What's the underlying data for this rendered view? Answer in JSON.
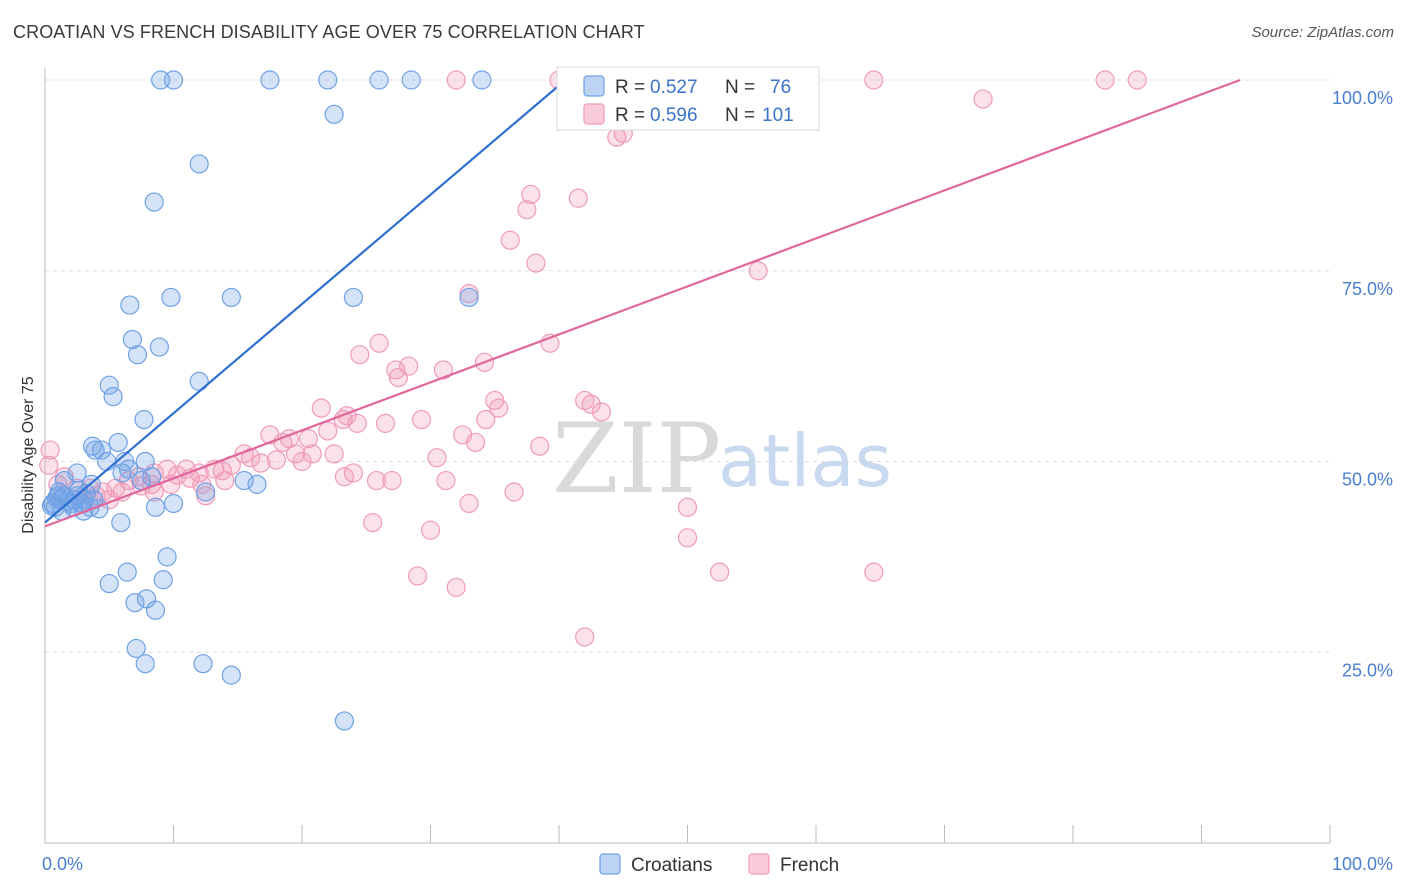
{
  "title": "CROATIAN VS FRENCH DISABILITY AGE OVER 75 CORRELATION CHART",
  "source": "Source: ZipAtlas.com",
  "watermark": {
    "zip": "ZIP",
    "atlas": "atlas"
  },
  "colors": {
    "croatians": "#6fa1e6",
    "croatians_line": "#2f6fd1",
    "french": "#f09bb8",
    "french_line": "#e0679a",
    "grid": "#dedede",
    "tick": "#4a7fd0"
  },
  "legend": {
    "r_label": "R =",
    "n_label": "N =",
    "croatians": {
      "r": "0.527",
      "n": "76"
    },
    "french": {
      "r": "0.596",
      "n": "101"
    }
  },
  "chart_data": {
    "type": "scatter",
    "title": "CROATIAN VS FRENCH DISABILITY AGE OVER 75 CORRELATION CHART",
    "xlabel": "",
    "ylabel": "Disability Age Over 75",
    "xlim": [
      0,
      100
    ],
    "ylim": [
      0,
      100
    ],
    "x_tick_labels": [
      {
        "value": 0,
        "label": "0.0%"
      },
      {
        "value": 100,
        "label": "100.0%"
      }
    ],
    "y_tick_labels": [
      {
        "value": 25,
        "label": "25.0%"
      },
      {
        "value": 50,
        "label": "50.0%"
      },
      {
        "value": 75,
        "label": "75.0%"
      },
      {
        "value": 100,
        "label": "100.0%"
      }
    ],
    "grid": true,
    "series": [
      {
        "name": "Croatians",
        "r": 0.527,
        "n": 76,
        "trend": {
          "x": [
            0,
            40.5
          ],
          "y": [
            42,
            100
          ]
        },
        "points": [
          [
            9,
            100
          ],
          [
            10,
            100
          ],
          [
            17.5,
            100
          ],
          [
            22,
            100
          ],
          [
            26,
            100
          ],
          [
            28.5,
            100
          ],
          [
            34,
            100
          ],
          [
            22.5,
            95.5
          ],
          [
            12,
            89
          ],
          [
            8.5,
            84
          ],
          [
            9.8,
            71.5
          ],
          [
            14.5,
            71.5
          ],
          [
            24,
            71.5
          ],
          [
            33,
            71.5
          ],
          [
            6.6,
            70.5
          ],
          [
            6.8,
            66
          ],
          [
            7.2,
            64
          ],
          [
            8.9,
            65
          ],
          [
            5,
            60
          ],
          [
            12,
            60.5
          ],
          [
            5.3,
            58.5
          ],
          [
            7.7,
            55.5
          ],
          [
            3.7,
            52
          ],
          [
            5.7,
            52.5
          ],
          [
            3.9,
            51.5
          ],
          [
            4.4,
            51.5
          ],
          [
            7.8,
            50
          ],
          [
            4.8,
            50
          ],
          [
            6.2,
            50
          ],
          [
            6.5,
            49
          ],
          [
            2.5,
            48.5
          ],
          [
            8.3,
            48
          ],
          [
            1.5,
            47.5
          ],
          [
            3.6,
            47
          ],
          [
            7.5,
            47.5
          ],
          [
            15.5,
            47.5
          ],
          [
            16.5,
            47
          ],
          [
            12.5,
            46
          ],
          [
            1,
            45.5
          ],
          [
            1.5,
            45.5
          ],
          [
            2.5,
            45.5
          ],
          [
            3,
            45
          ],
          [
            3.8,
            45
          ],
          [
            1.2,
            45
          ],
          [
            0.6,
            44.5
          ],
          [
            2,
            44.5
          ],
          [
            2.8,
            44.5
          ],
          [
            0.8,
            44
          ],
          [
            1.3,
            43.5
          ],
          [
            2.2,
            44
          ],
          [
            3.5,
            44
          ],
          [
            8.6,
            44
          ],
          [
            10,
            44.5
          ],
          [
            3,
            43.5
          ],
          [
            5.9,
            42
          ],
          [
            6.4,
            35.5
          ],
          [
            5,
            34
          ],
          [
            9.2,
            34.5
          ],
          [
            9.5,
            37.5
          ],
          [
            7,
            31.5
          ],
          [
            7.9,
            32
          ],
          [
            8.6,
            30.5
          ],
          [
            7.1,
            25.5
          ],
          [
            7.8,
            23.5
          ],
          [
            12.3,
            23.5
          ],
          [
            14.5,
            22
          ],
          [
            23.3,
            16
          ],
          [
            0.5,
            44.2
          ],
          [
            1.8,
            44.8
          ],
          [
            4.2,
            43.8
          ],
          [
            3.2,
            45.8
          ],
          [
            2.6,
            46.2
          ],
          [
            6.0,
            48.5
          ],
          [
            1.1,
            46.0
          ],
          [
            0.9,
            45.2
          ],
          [
            2.3,
            45.0
          ]
        ]
      },
      {
        "name": "French",
        "r": 0.596,
        "n": 101,
        "trend": {
          "x": [
            0,
            93
          ],
          "y": [
            41.5,
            100
          ]
        },
        "points": [
          [
            32,
            100
          ],
          [
            40,
            100
          ],
          [
            41,
            100
          ],
          [
            46,
            100
          ],
          [
            48,
            100
          ],
          [
            64.5,
            100
          ],
          [
            85,
            100
          ],
          [
            82.5,
            100
          ],
          [
            73,
            97.5
          ],
          [
            45,
            93
          ],
          [
            44.5,
            92.5
          ],
          [
            41.5,
            84.5
          ],
          [
            37.5,
            83
          ],
          [
            37.8,
            85
          ],
          [
            36.2,
            79
          ],
          [
            38.2,
            76
          ],
          [
            55.5,
            75
          ],
          [
            33,
            72
          ],
          [
            39.3,
            65.5
          ],
          [
            26,
            65.5
          ],
          [
            24.5,
            64
          ],
          [
            27.3,
            62
          ],
          [
            28.3,
            62.5
          ],
          [
            31,
            62
          ],
          [
            34.2,
            63
          ],
          [
            27.5,
            61
          ],
          [
            35,
            58
          ],
          [
            42.5,
            57.5
          ],
          [
            35.3,
            57
          ],
          [
            43.3,
            56.5
          ],
          [
            21.5,
            57
          ],
          [
            23.5,
            56
          ],
          [
            23.2,
            55.5
          ],
          [
            24.3,
            55
          ],
          [
            29.3,
            55.5
          ],
          [
            34.3,
            55.5
          ],
          [
            17.5,
            53.5
          ],
          [
            19,
            53
          ],
          [
            20.5,
            53
          ],
          [
            18.5,
            52.5
          ],
          [
            33.5,
            52.5
          ],
          [
            38.5,
            52
          ],
          [
            15.5,
            51
          ],
          [
            16,
            50.5
          ],
          [
            19.5,
            51
          ],
          [
            20.8,
            51
          ],
          [
            22.5,
            51
          ],
          [
            14.5,
            49.5
          ],
          [
            13.2,
            49
          ],
          [
            12,
            48.5
          ],
          [
            11,
            49
          ],
          [
            9.5,
            49
          ],
          [
            8.5,
            48.5
          ],
          [
            7.3,
            48
          ],
          [
            6.5,
            47.5
          ],
          [
            8.3,
            47
          ],
          [
            9.8,
            47
          ],
          [
            12.2,
            47
          ],
          [
            24,
            48.5
          ],
          [
            23.3,
            48
          ],
          [
            25.8,
            47.5
          ],
          [
            27,
            47.5
          ],
          [
            31.2,
            47.5
          ],
          [
            14,
            47.5
          ],
          [
            12.5,
            45.5
          ],
          [
            8.5,
            46
          ],
          [
            6,
            46
          ],
          [
            5.5,
            46.5
          ],
          [
            4.5,
            46
          ],
          [
            3.5,
            46.5
          ],
          [
            2.5,
            46.5
          ],
          [
            4,
            45.5
          ],
          [
            1,
            47
          ],
          [
            1.5,
            48
          ],
          [
            0.4,
            51.5
          ],
          [
            0.3,
            49.5
          ],
          [
            36.5,
            46
          ],
          [
            32.5,
            53.5
          ],
          [
            25.5,
            42
          ],
          [
            30,
            41
          ],
          [
            33,
            44.5
          ],
          [
            50,
            44
          ],
          [
            50,
            40
          ],
          [
            52.5,
            35.5
          ],
          [
            64.5,
            35.5
          ],
          [
            29,
            35
          ],
          [
            32,
            33.5
          ],
          [
            42,
            27
          ],
          [
            3,
            44.5
          ],
          [
            5,
            45
          ],
          [
            7.5,
            46.8
          ],
          [
            10.3,
            48.2
          ],
          [
            11.3,
            47.8
          ],
          [
            13.8,
            48.8
          ],
          [
            18.0,
            50.2
          ],
          [
            26.5,
            55.0
          ],
          [
            22.0,
            54.0
          ],
          [
            42.0,
            58.0
          ],
          [
            30.5,
            50.5
          ],
          [
            20.0,
            50.0
          ],
          [
            16.8,
            49.8
          ]
        ]
      }
    ]
  },
  "bottom_legend": {
    "croatians": "Croatians",
    "french": "French"
  }
}
